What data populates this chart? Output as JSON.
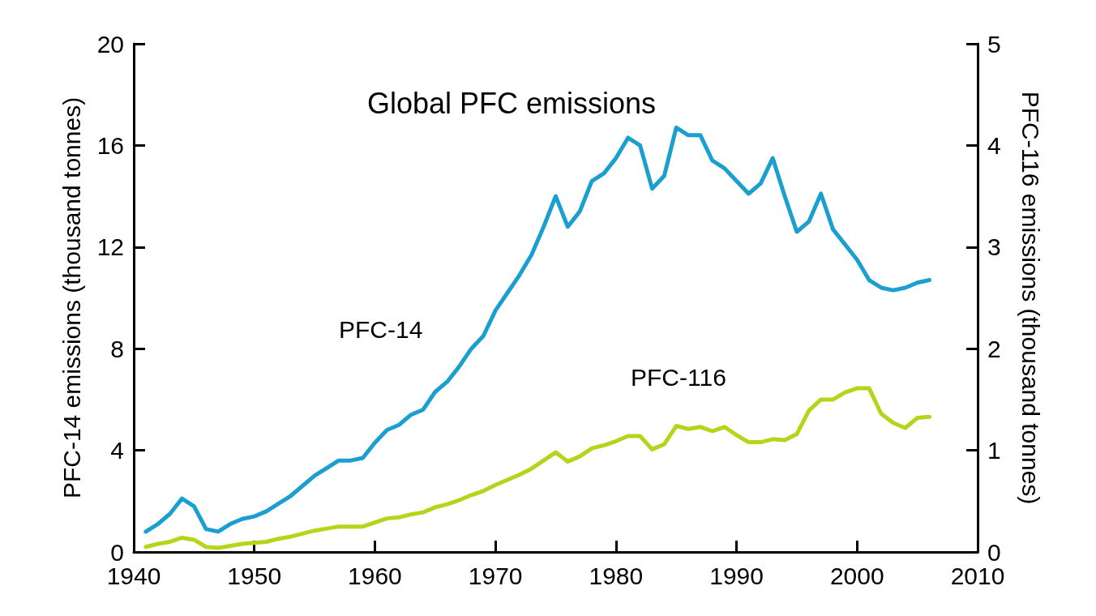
{
  "chart_data": {
    "type": "line",
    "title": "Global PFC emissions",
    "ylabel": "PFC-14 emissions (thousand tonnes)",
    "y2label": "PFC-116 emissions (thousand tonnes)",
    "x": [
      1941,
      1942,
      1943,
      1944,
      1945,
      1946,
      1947,
      1948,
      1949,
      1950,
      1951,
      1952,
      1953,
      1954,
      1955,
      1956,
      1957,
      1958,
      1959,
      1960,
      1961,
      1962,
      1963,
      1964,
      1965,
      1966,
      1967,
      1968,
      1969,
      1970,
      1971,
      1972,
      1973,
      1974,
      1975,
      1976,
      1977,
      1978,
      1979,
      1980,
      1981,
      1982,
      1983,
      1984,
      1985,
      1986,
      1987,
      1988,
      1989,
      1990,
      1991,
      1992,
      1993,
      1994,
      1995,
      1996,
      1997,
      1998,
      1999,
      2000,
      2001,
      2002,
      2003,
      2004,
      2005,
      2006
    ],
    "series": [
      {
        "name": "PFC-14",
        "color": "#1a9fd0",
        "values": [
          0.8,
          1.1,
          1.5,
          2.1,
          1.8,
          0.9,
          0.8,
          1.1,
          1.3,
          1.4,
          1.6,
          1.9,
          2.2,
          2.6,
          3.0,
          3.3,
          3.6,
          3.6,
          3.7,
          4.3,
          4.8,
          5.0,
          5.4,
          5.6,
          6.3,
          6.7,
          7.3,
          8.0,
          8.5,
          9.5,
          10.2,
          10.9,
          11.7,
          12.8,
          14.0,
          12.8,
          13.4,
          14.6,
          14.9,
          15.5,
          16.3,
          16.0,
          14.3,
          14.8,
          16.7,
          16.4,
          16.4,
          15.4,
          15.1,
          14.6,
          14.1,
          14.5,
          15.5,
          14.0,
          12.6,
          13.0,
          14.1,
          12.7,
          12.1,
          11.5,
          10.7,
          10.4,
          10.3,
          10.4,
          10.6,
          10.7
        ]
      },
      {
        "name": "PFC-116",
        "color": "#b5d41a",
        "axis": "y2",
        "values": [
          0.05,
          0.08,
          0.1,
          0.14,
          0.12,
          0.05,
          0.04,
          0.06,
          0.08,
          0.09,
          0.1,
          0.13,
          0.15,
          0.18,
          0.21,
          0.23,
          0.25,
          0.25,
          0.25,
          0.29,
          0.33,
          0.34,
          0.37,
          0.39,
          0.44,
          0.47,
          0.51,
          0.56,
          0.6,
          0.66,
          0.71,
          0.76,
          0.82,
          0.9,
          0.98,
          0.89,
          0.94,
          1.02,
          1.05,
          1.09,
          1.14,
          1.14,
          1.01,
          1.06,
          1.24,
          1.21,
          1.23,
          1.19,
          1.23,
          1.15,
          1.08,
          1.08,
          1.11,
          1.1,
          1.16,
          1.39,
          1.5,
          1.5,
          1.57,
          1.61,
          1.61,
          1.36,
          1.27,
          1.22,
          1.32,
          1.33
        ]
      }
    ],
    "xlim": [
      1940,
      2010
    ],
    "xticks": [
      1940,
      1950,
      1960,
      1970,
      1980,
      1990,
      2000,
      2010
    ],
    "ylim": [
      0,
      20
    ],
    "yticks": [
      0,
      4,
      8,
      12,
      16,
      20
    ],
    "y2lim": [
      0,
      5
    ],
    "y2ticks": [
      0,
      1,
      2,
      3,
      4,
      5
    ],
    "grid": false,
    "marker": "none",
    "line_style": "solid",
    "legend": false
  }
}
